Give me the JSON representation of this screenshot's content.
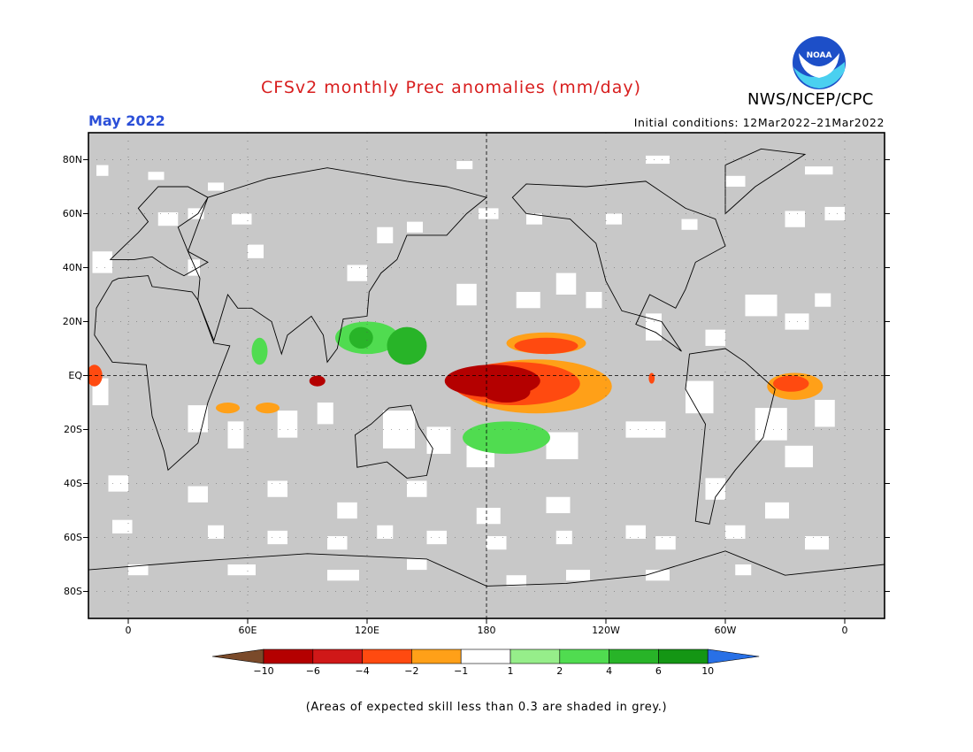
{
  "title": "CFSv2 monthly Prec anomalies (mm/day)",
  "target_month": "May 2022",
  "initial_conditions": "Initial conditions: 12Mar2022–21Mar2022",
  "agency": "NWS/NCEP/CPC",
  "logo_text": "NOAA",
  "footnote": "(Areas of expected skill less than 0.3 are shaded in grey.)",
  "map": {
    "lon_range": [
      -20,
      380
    ],
    "lat_range": [
      -90,
      90
    ],
    "lat_ticks": [
      "80N",
      "60N",
      "40N",
      "20N",
      "EQ",
      "20S",
      "40S",
      "60S",
      "80S"
    ],
    "lon_ticks": [
      "0",
      "60E",
      "120E",
      "180",
      "120W",
      "60W",
      "0"
    ],
    "grey_skill_mask_color": "#c8c8c8",
    "grid": "dotted"
  },
  "colorbar": {
    "labels": [
      "−10",
      "−6",
      "−4",
      "−2",
      "−1",
      "1",
      "2",
      "4",
      "6",
      "10"
    ],
    "colors": [
      "#7a4a2a",
      "#b40000",
      "#d01818",
      "#ff4a10",
      "#ffa018",
      "#ffffff",
      "#96ee8a",
      "#50dc50",
      "#28b428",
      "#149614",
      "#2870e6"
    ]
  },
  "anomaly_regions": [
    {
      "name": "central-pacific-dry-core",
      "category": "<-6",
      "color": "#b40000"
    },
    {
      "name": "central-pacific-dry",
      "category": "-4",
      "color": "#ff4a10"
    },
    {
      "name": "central-pacific-dry-edge",
      "category": "-2",
      "color": "#ffa018"
    },
    {
      "name": "maritime-continent-wet",
      "category": "4",
      "color": "#28b428"
    },
    {
      "name": "south-pacific-wet",
      "category": "2",
      "color": "#50dc50"
    },
    {
      "name": "nordeste-brazil-dry",
      "category": "-4",
      "color": "#ff4a10"
    },
    {
      "name": "gulf-of-guinea-dry",
      "category": "-4",
      "color": "#ff4a10"
    }
  ]
}
